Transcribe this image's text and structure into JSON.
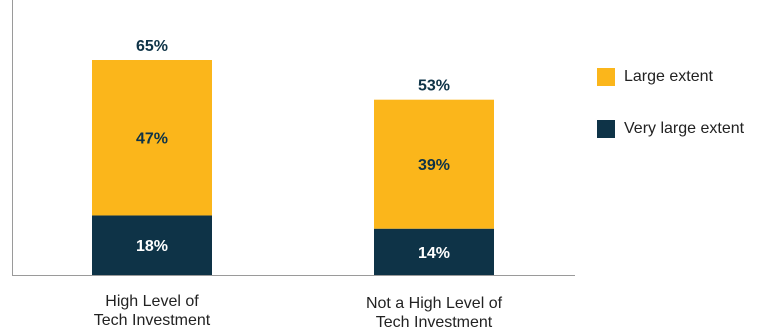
{
  "chart_data": {
    "type": "bar",
    "stacked": true,
    "categories": [
      "High Level of Tech Investment",
      "Not a High Level of Tech Investment"
    ],
    "category_lines": [
      [
        "High Level of",
        "Tech Investment"
      ],
      [
        "Not a High Level of",
        "Tech Investment"
      ]
    ],
    "series": [
      {
        "name": "Very large extent",
        "values": [
          18,
          14
        ],
        "labels": [
          "18%",
          "14%"
        ],
        "color": "#0e3347",
        "label_color": "#ffffff"
      },
      {
        "name": "Large extent",
        "values": [
          47,
          39
        ],
        "labels": [
          "47%",
          "39%"
        ],
        "color": "#fbb61b",
        "label_color": "#0e3347"
      }
    ],
    "totals": [
      65,
      53
    ],
    "total_labels": [
      "65%",
      "53%"
    ],
    "total_label_color": "#0e3347",
    "legend": [
      {
        "name": "Large extent",
        "color": "#fbb61b"
      },
      {
        "name": "Very large extent",
        "color": "#0e3347"
      }
    ],
    "legend_position": "right",
    "ylim": [
      0,
      80
    ],
    "grid": false,
    "axis_color": "#9a9a9a"
  }
}
